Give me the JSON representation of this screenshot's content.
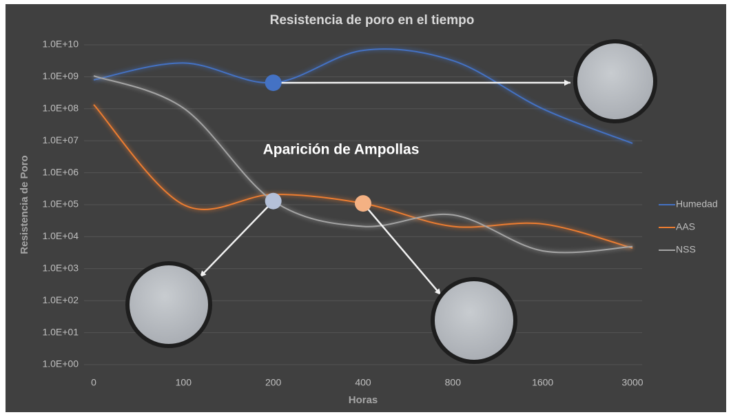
{
  "chart_data": {
    "type": "line",
    "title": "Resistencia de poro en el tiempo",
    "xlabel": "Horas",
    "ylabel": "Resistencia de Poro",
    "annotation": "Aparición de Ampollas",
    "categories": [
      "0",
      "100",
      "200",
      "400",
      "800",
      "1600",
      "3000"
    ],
    "series": [
      {
        "name": "Humedad",
        "color": "#4472c4",
        "values": [
          800000000,
          2700000000,
          650000000,
          6700000000,
          3200000000,
          100000000,
          8300000
        ]
      },
      {
        "name": "AAS",
        "color": "#ed7d31",
        "values": [
          135000000,
          100000,
          210000,
          110000,
          21000,
          25000,
          4400
        ]
      },
      {
        "name": "NSS",
        "color": "#a5a5a5",
        "values": [
          1070000000,
          105000000,
          130000,
          21000,
          48000,
          3600,
          4900
        ]
      }
    ],
    "log_y": true,
    "ylim": [
      1,
      10000000000
    ],
    "yticks": [
      {
        "value": 1,
        "label": "1.0E+00"
      },
      {
        "value": 10,
        "label": "1.0E+01"
      },
      {
        "value": 100,
        "label": "1.0E+02"
      },
      {
        "value": 1000,
        "label": "1.0E+03"
      },
      {
        "value": 10000,
        "label": "1.0E+04"
      },
      {
        "value": 100000,
        "label": "1.0E+05"
      },
      {
        "value": 1000000,
        "label": "1.0E+06"
      },
      {
        "value": 10000000,
        "label": "1.0E+07"
      },
      {
        "value": 100000000,
        "label": "1.0E+08"
      },
      {
        "value": 1000000000,
        "label": "1.0E+09"
      },
      {
        "value": 10000000000,
        "label": "1.0E+10"
      }
    ],
    "grid": true,
    "legend": "right"
  }
}
